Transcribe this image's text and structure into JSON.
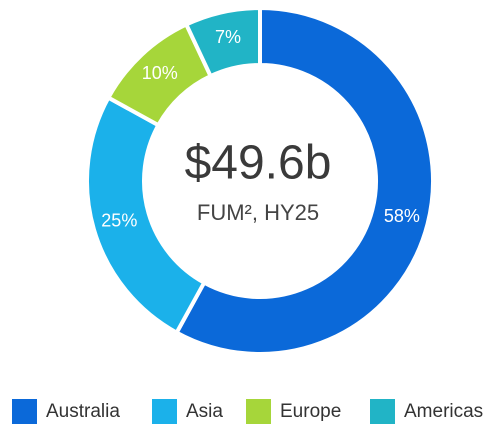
{
  "chart_data": {
    "type": "donut",
    "center_title": "$49.6b",
    "center_subtitle": "FUM², HY25",
    "categories": [
      "Australia",
      "Asia",
      "Europe",
      "Americas"
    ],
    "values": [
      58,
      25,
      10,
      7
    ],
    "value_labels": [
      "58%",
      "25%",
      "10%",
      "7%"
    ],
    "colors": [
      "#0b69d9",
      "#1bb1ea",
      "#a6d63a",
      "#21b4c6"
    ],
    "legend": "bottom"
  }
}
